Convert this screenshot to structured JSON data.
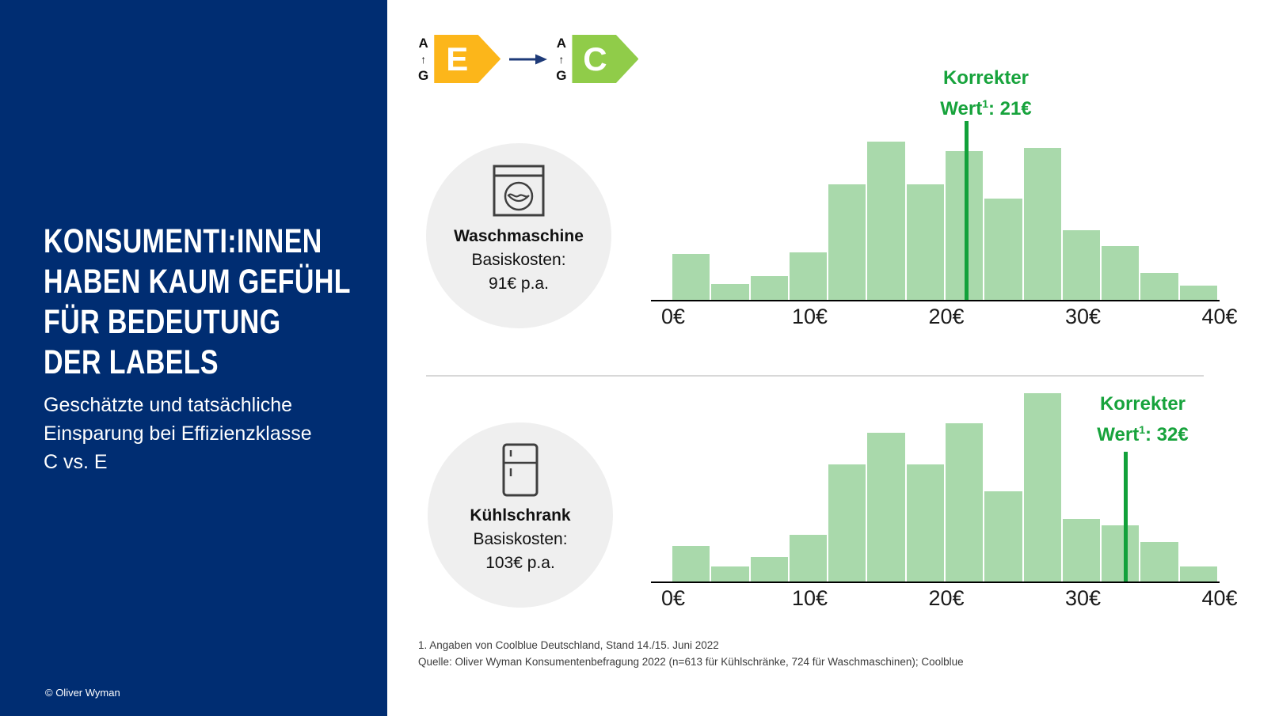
{
  "sidebar": {
    "title_lines": [
      "KONSUMENTI:INNEN",
      "HABEN KAUM GEFÜHL",
      "FÜR BEDEUTUNG",
      "DER LABELS"
    ],
    "subtitle_lines": [
      "Geschätzte und tatsächliche",
      "Einsparung bei Effizienzklasse",
      "C vs. E"
    ],
    "copyright": "© Oliver Wyman",
    "bg_color": "#002d72"
  },
  "energy_transition": {
    "from_letter": "E",
    "from_color": "#fcb61a",
    "to_letter": "C",
    "to_color": "#90cc49",
    "scale_top": "A",
    "scale_bottom": "G",
    "arrow_glyph": "↑",
    "transition_arrow_color": "#1e3a78"
  },
  "charts": [
    {
      "label": "Waschmaschine",
      "basiskosten_label": "Basiskosten:",
      "basiskosten_value": "91€ p.a.",
      "marker_line1": "Korrekter",
      "marker_line2_pre": "Wert",
      "marker_sup": "1",
      "marker_line2_post": ": 21€"
    },
    {
      "label": "Kühlschrank",
      "basiskosten_label": "Basiskosten:",
      "basiskosten_value": "103€ p.a.",
      "marker_line1": "Korrekter",
      "marker_line2_pre": "Wert",
      "marker_sup": "1",
      "marker_line2_post": ": 32€"
    }
  ],
  "chart_data": [
    {
      "type": "bar",
      "title": "Waschmaschine – Verteilung der geschätzten Einsparung",
      "x_tick_labels": [
        "0€",
        "10€",
        "20€",
        "30€",
        "40€"
      ],
      "x_range_eur": [
        0,
        40
      ],
      "n_bins": 14,
      "relative_heights": [
        0.29,
        0.1,
        0.15,
        0.3,
        0.73,
        1.0,
        0.73,
        0.94,
        0.64,
        0.96,
        0.44,
        0.34,
        0.17,
        0.09
      ],
      "bar_color": "#a9d9ab",
      "marker_value_eur": 21,
      "marker_label": "Korrekter Wert¹: 21€",
      "marker_frac_of_axis": 0.537,
      "grid": false,
      "ylabel": "",
      "xlabel": ""
    },
    {
      "type": "bar",
      "title": "Kühlschrank – Verteilung der geschätzten Einsparung",
      "x_tick_labels": [
        "0€",
        "10€",
        "20€",
        "30€",
        "40€"
      ],
      "x_range_eur": [
        0,
        40
      ],
      "n_bins": 14,
      "relative_heights": [
        0.19,
        0.08,
        0.13,
        0.25,
        0.62,
        0.79,
        0.62,
        0.84,
        0.48,
        1.0,
        0.33,
        0.3,
        0.21,
        0.08
      ],
      "bar_color": "#a9d9ab",
      "marker_value_eur": 32,
      "marker_label": "Korrekter Wert¹: 32€",
      "marker_frac_of_axis": 0.829,
      "grid": false,
      "ylabel": "",
      "xlabel": ""
    }
  ],
  "footnotes": [
    "1. Angaben von Coolblue Deutschland, Stand 14./15. Juni 2022",
    "Quelle: Oliver Wyman Konsumentenbefragung 2022 (n=613 für Kühlschränke, 724 für Waschmaschinen); Coolblue"
  ]
}
